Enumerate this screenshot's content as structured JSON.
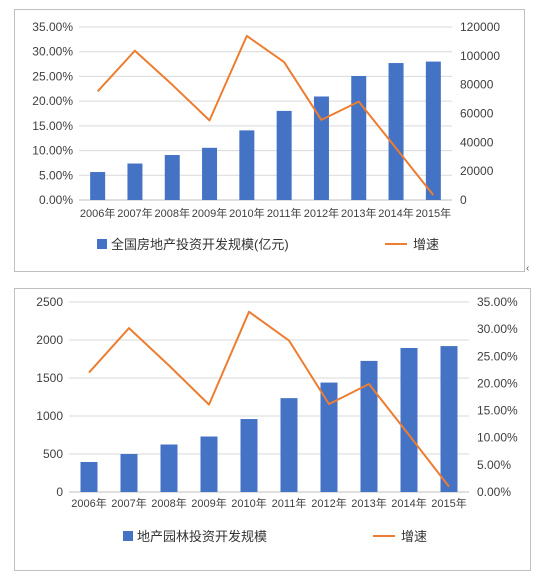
{
  "colors": {
    "bar": "#4472C4",
    "line": "#ED7D31",
    "grid": "#d9d9d9",
    "axis": "#bfbfbf"
  },
  "chart_data": [
    {
      "type": "bar",
      "title": "",
      "categories": [
        "2006年",
        "2007年",
        "2008年",
        "2009年",
        "2010年",
        "2011年",
        "2012年",
        "2013年",
        "2014年",
        "2015年"
      ],
      "series": [
        {
          "name": "全国房地产投资开发规模(亿元)",
          "type": "bar",
          "axis": "right",
          "values": [
            19400,
            25300,
            31200,
            36200,
            48300,
            61800,
            71800,
            86000,
            95000,
            96000
          ]
        },
        {
          "name": "增速",
          "type": "line",
          "axis": "left",
          "values": [
            0.22,
            0.302,
            0.233,
            0.161,
            0.332,
            0.279,
            0.162,
            0.199,
            0.105,
            0.01
          ]
        }
      ],
      "left_axis": {
        "min": 0,
        "max": 0.35,
        "ticks": [
          "0.00%",
          "5.00%",
          "10.00%",
          "15.00%",
          "20.00%",
          "25.00%",
          "30.00%",
          "35.00%"
        ]
      },
      "right_axis": {
        "min": 0,
        "max": 120000,
        "ticks": [
          "0",
          "20000",
          "40000",
          "60000",
          "80000",
          "100000",
          "120000"
        ]
      },
      "grid": true,
      "legend_position": "bottom"
    },
    {
      "type": "bar",
      "title": "",
      "categories": [
        "2006年",
        "2007年",
        "2008年",
        "2009年",
        "2010年",
        "2011年",
        "2012年",
        "2013年",
        "2014年",
        "2015年"
      ],
      "series": [
        {
          "name": "地产园林投资开发规模",
          "type": "bar",
          "axis": "left",
          "values": [
            395,
            500,
            625,
            730,
            960,
            1235,
            1440,
            1725,
            1895,
            1920
          ]
        },
        {
          "name": "增速",
          "type": "line",
          "axis": "right",
          "values": [
            0.22,
            0.302,
            0.233,
            0.161,
            0.332,
            0.279,
            0.162,
            0.199,
            0.105,
            0.01
          ]
        }
      ],
      "left_axis": {
        "min": 0,
        "max": 2500,
        "ticks": [
          "0",
          "500",
          "1000",
          "1500",
          "2000",
          "2500"
        ]
      },
      "right_axis": {
        "min": 0,
        "max": 0.35,
        "ticks": [
          "0.00%",
          "5.00%",
          "10.00%",
          "15.00%",
          "20.00%",
          "25.00%",
          "30.00%",
          "35.00%"
        ]
      },
      "grid": true,
      "legend_position": "bottom"
    }
  ],
  "stray_mark": "‹"
}
